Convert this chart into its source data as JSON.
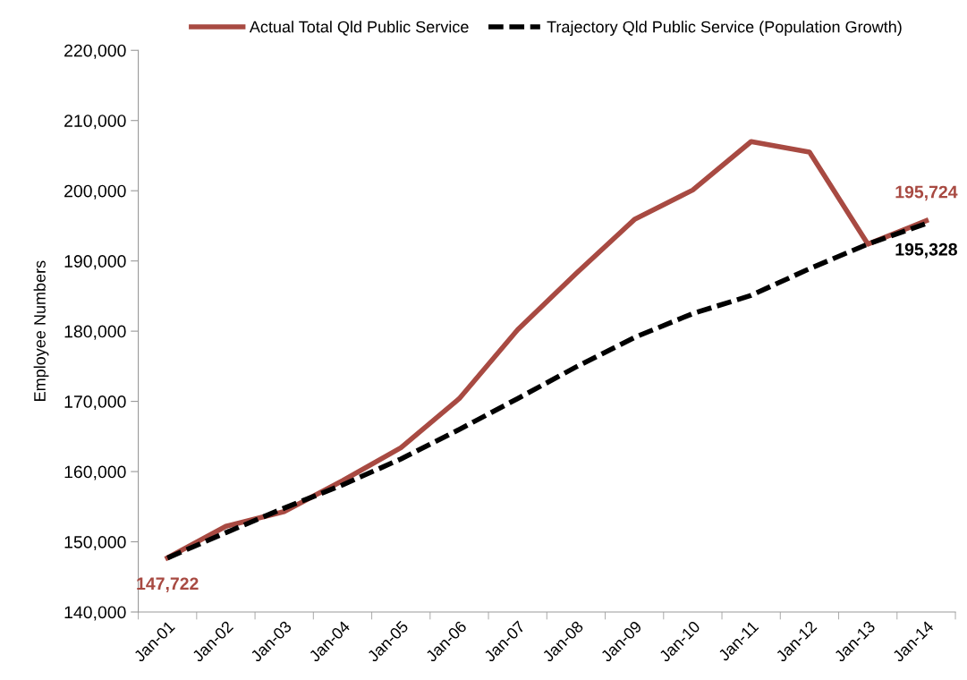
{
  "chart_data": {
    "type": "line",
    "ylabel": "Employee Numbers",
    "categories": [
      "Jan-01",
      "Jan-02",
      "Jan-03",
      "Jan-04",
      "Jan-05",
      "Jan-06",
      "Jan-07",
      "Jan-08",
      "Jan-09",
      "Jan-10",
      "Jan-11",
      "Jan-12",
      "Jan-13",
      "Jan-14"
    ],
    "series": [
      {
        "name": "Actual Total Qld Public Service",
        "color": "#a84a42",
        "line_style": "solid",
        "values": [
          147722,
          152200,
          154300,
          158700,
          163400,
          170400,
          180200,
          188200,
          195900,
          200100,
          207000,
          205500,
          192400,
          195724
        ],
        "value_labels": [
          "147,722",
          null,
          null,
          null,
          null,
          null,
          null,
          null,
          null,
          null,
          null,
          null,
          null,
          "195,724"
        ]
      },
      {
        "name": "Trajectory Qld Public Service (Population Growth)",
        "color": "#000000",
        "line_style": "dashed",
        "values": [
          147700,
          151300,
          154800,
          158100,
          161800,
          166000,
          170400,
          174900,
          179100,
          182500,
          185100,
          188900,
          192400,
          195328
        ],
        "value_labels": [
          null,
          null,
          null,
          null,
          null,
          null,
          null,
          null,
          null,
          null,
          null,
          null,
          null,
          "195,328"
        ]
      }
    ],
    "ylim": [
      140000,
      220000
    ],
    "yticks": [
      {
        "value": 140000,
        "label": "140,000"
      },
      {
        "value": 150000,
        "label": "150,000"
      },
      {
        "value": 160000,
        "label": "160,000"
      },
      {
        "value": 170000,
        "label": "170,000"
      },
      {
        "value": 180000,
        "label": "180,000"
      },
      {
        "value": 190000,
        "label": "190,000"
      },
      {
        "value": 200000,
        "label": "200,000"
      },
      {
        "value": 210000,
        "label": "210,000"
      },
      {
        "value": 220000,
        "label": "220,000"
      }
    ],
    "grid": false,
    "legend": "top",
    "marker": "none"
  }
}
